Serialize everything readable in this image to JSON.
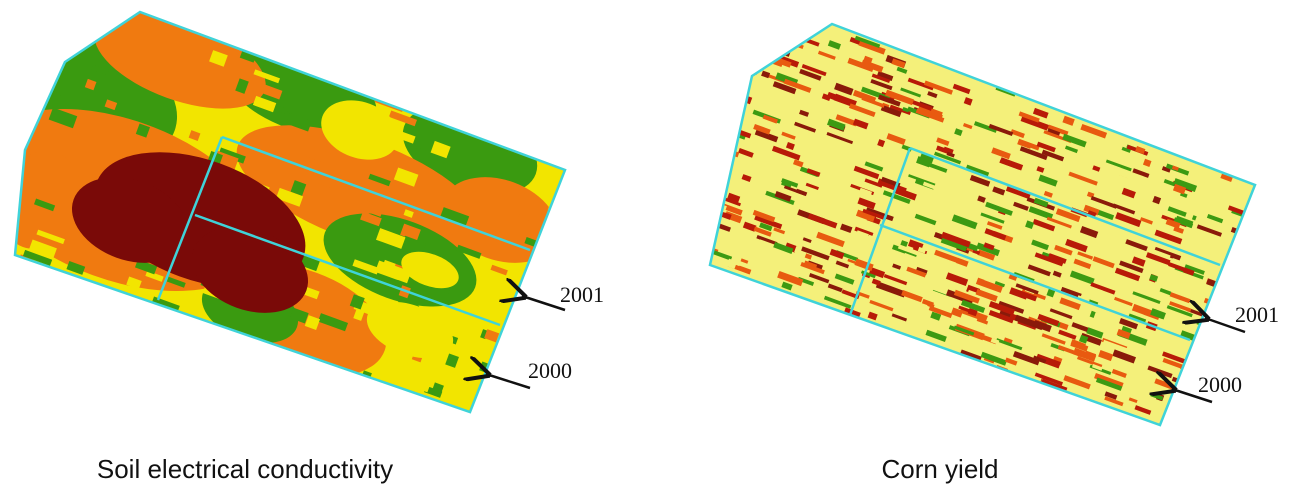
{
  "maps": [
    {
      "caption": "Soil electrical conductivity",
      "labels": [
        "2001",
        "2000"
      ]
    },
    {
      "caption": "Corn yield",
      "labels": [
        "2001",
        "2000"
      ]
    }
  ]
}
